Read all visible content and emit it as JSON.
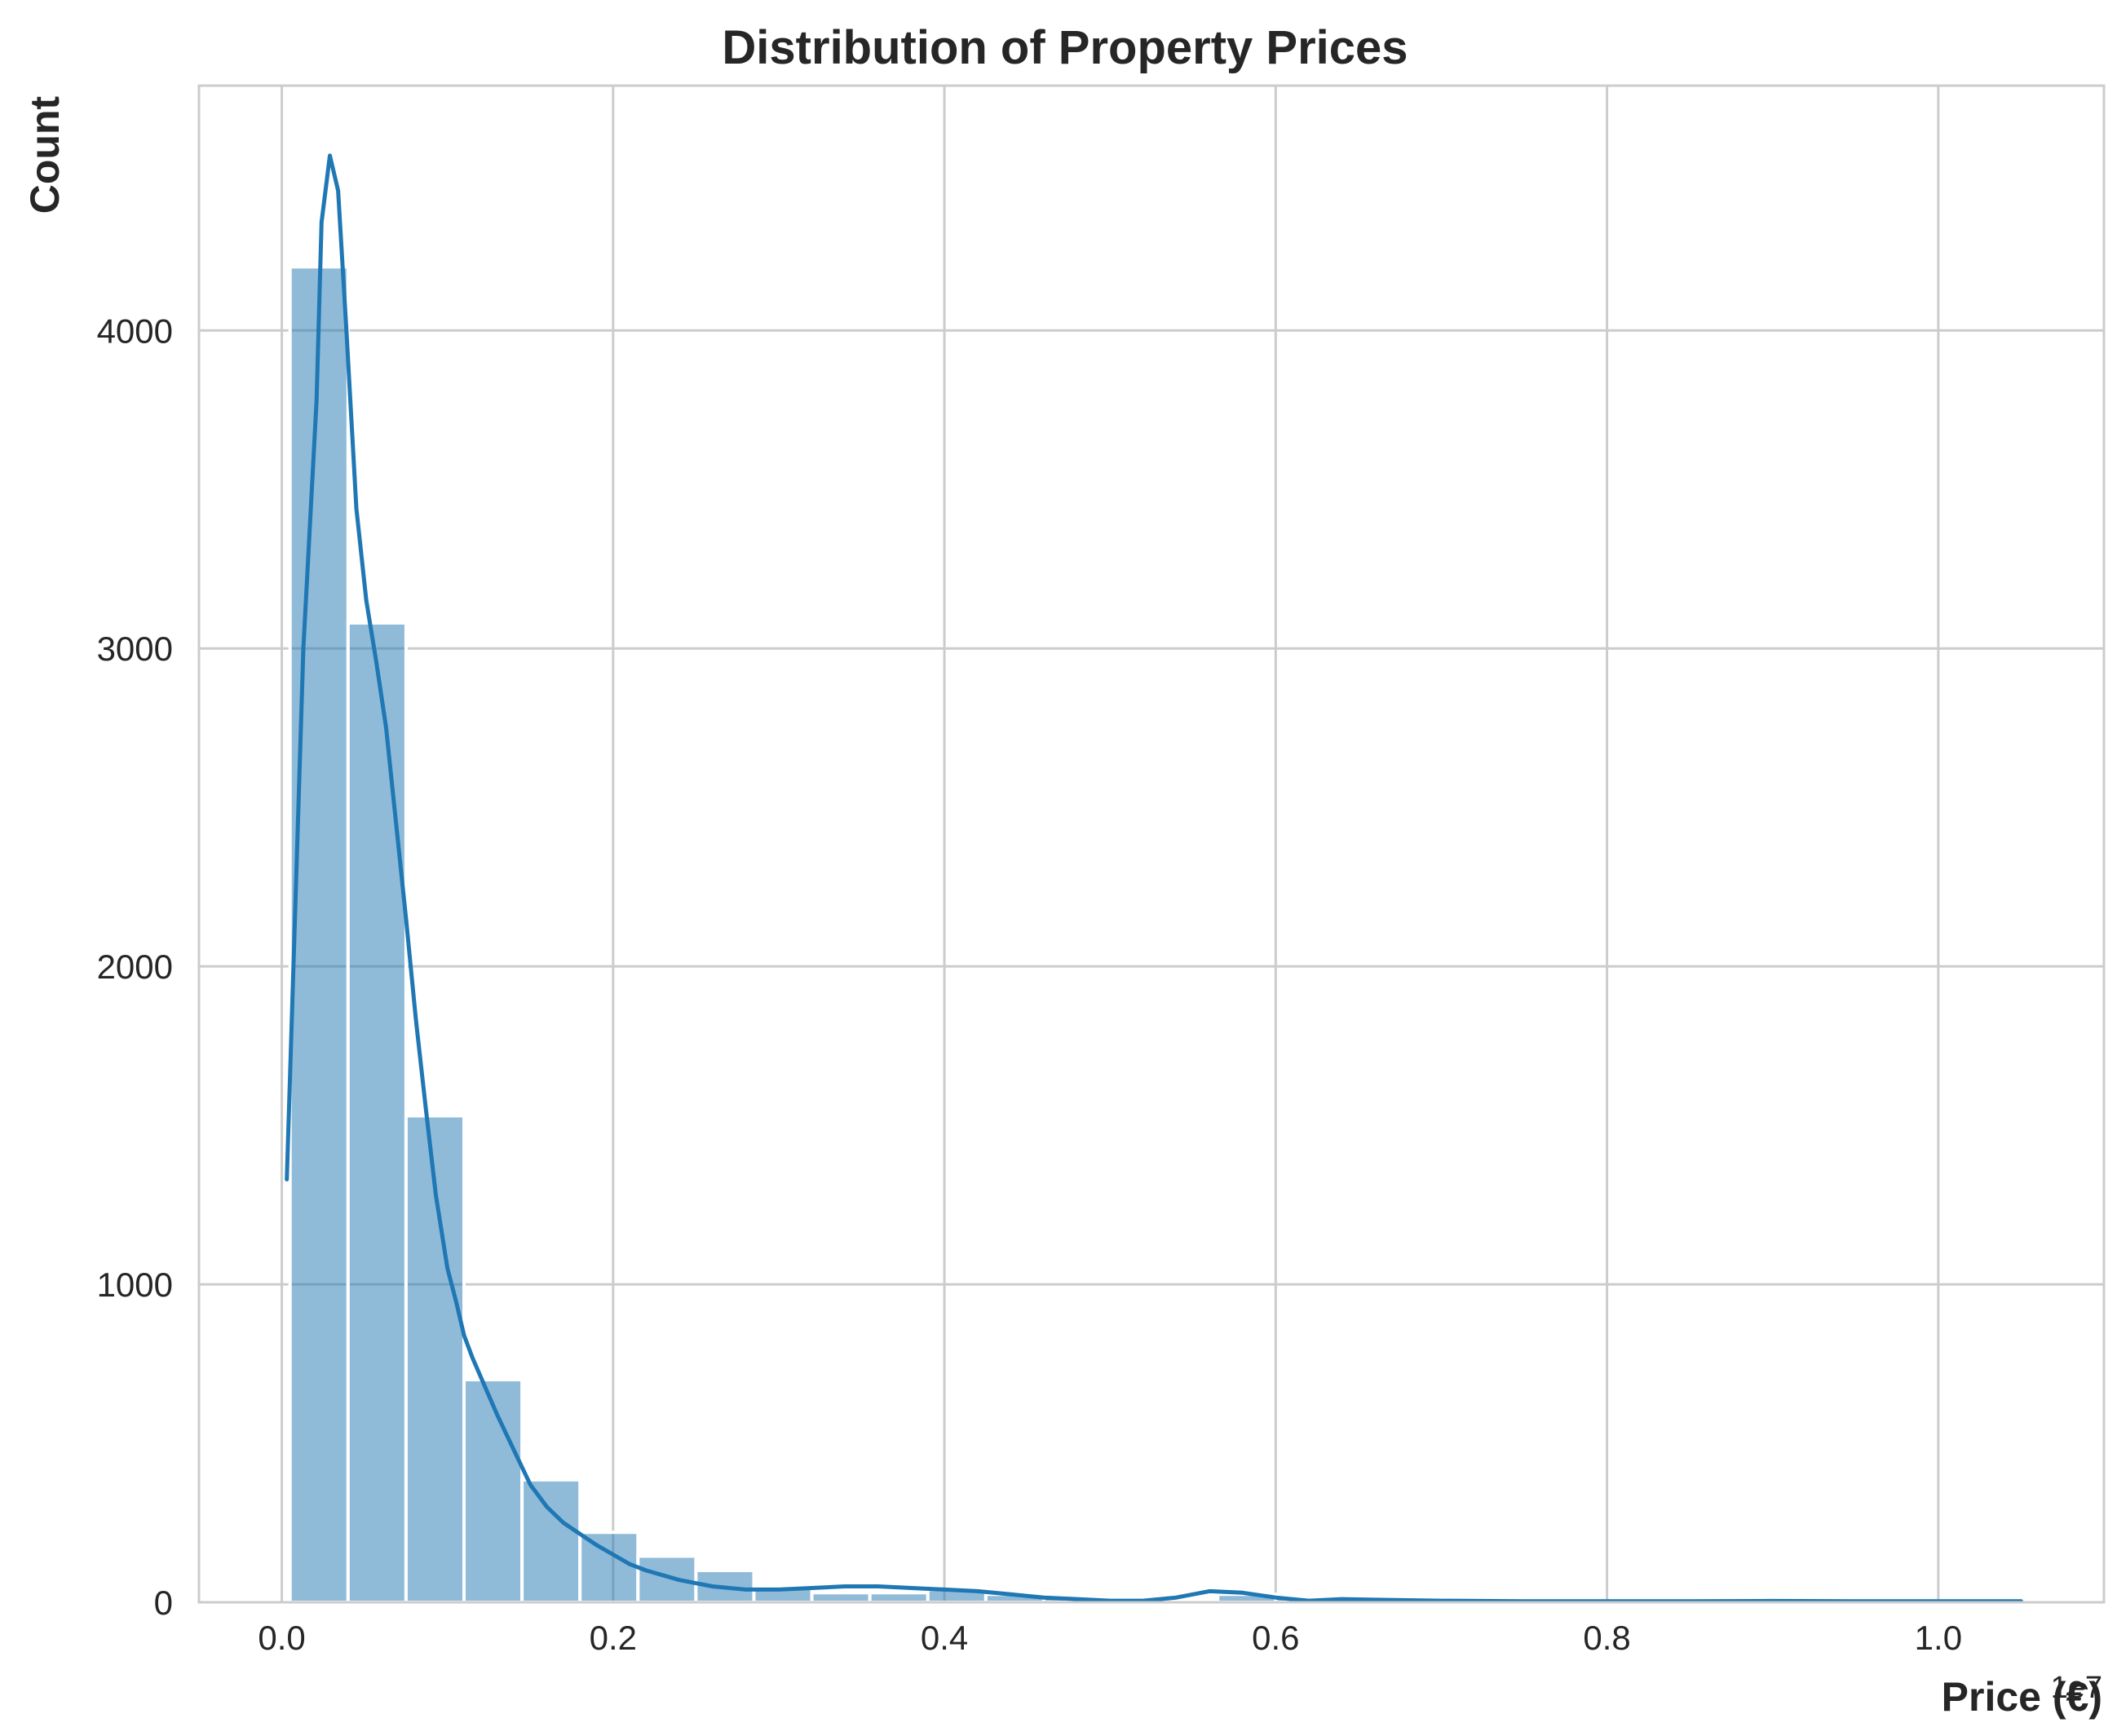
{
  "chart_data": {
    "type": "bar",
    "title": "Distribution of Property Prices",
    "xlabel": "Price (€)",
    "ylabel": "Count",
    "x_offset_label": "1e7",
    "x_scale_factor": 10000000,
    "xlim": [
      -0.05,
      1.1
    ],
    "ylim": [
      0,
      4770
    ],
    "xticks": [
      0.0,
      0.2,
      0.4,
      0.6,
      0.8,
      1.0
    ],
    "xtick_labels": [
      "0.0",
      "0.2",
      "0.4",
      "0.6",
      "0.8",
      "1.0"
    ],
    "yticks": [
      0,
      1000,
      2000,
      3000,
      4000
    ],
    "ytick_labels": [
      "0",
      "1000",
      "2000",
      "3000",
      "4000"
    ],
    "grid": true,
    "legend": "none",
    "series": [
      {
        "kind": "histogram",
        "color": "#1f77b4",
        "bin_edges": [
          0.005,
          0.04,
          0.075,
          0.11,
          0.145,
          0.18,
          0.215,
          0.25,
          0.285,
          0.32,
          0.355,
          0.39,
          0.425,
          0.46,
          0.495,
          0.53,
          0.565,
          0.6,
          0.635,
          0.67,
          0.705,
          0.74,
          0.775,
          0.81,
          0.845,
          0.88,
          0.915,
          0.95,
          0.985,
          1.02,
          1.055
        ],
        "counts": [
          4200,
          3080,
          1530,
          700,
          385,
          220,
          145,
          100,
          45,
          30,
          30,
          40,
          25,
          15,
          5,
          5,
          25,
          15,
          8,
          5,
          3,
          3,
          3,
          2,
          2,
          2,
          3,
          2,
          2,
          2
        ]
      },
      {
        "kind": "kde",
        "color": "#1f77b4",
        "x": [
          0.003,
          0.013,
          0.021,
          0.024,
          0.029,
          0.034,
          0.039,
          0.045,
          0.051,
          0.057,
          0.063,
          0.069,
          0.075,
          0.081,
          0.087,
          0.093,
          0.1,
          0.105,
          0.11,
          0.115,
          0.12,
          0.13,
          0.14,
          0.15,
          0.16,
          0.17,
          0.18,
          0.19,
          0.2,
          0.21,
          0.22,
          0.24,
          0.26,
          0.28,
          0.3,
          0.32,
          0.34,
          0.36,
          0.38,
          0.4,
          0.42,
          0.44,
          0.46,
          0.48,
          0.5,
          0.52,
          0.54,
          0.56,
          0.58,
          0.6,
          0.62,
          0.64,
          0.66,
          0.7,
          0.75,
          0.8,
          0.85,
          0.9,
          0.95,
          1.0,
          1.05
        ],
        "y": [
          1330,
          3000,
          3780,
          4340,
          4550,
          4440,
          4000,
          3440,
          3150,
          2960,
          2750,
          2450,
          2150,
          1830,
          1550,
          1280,
          1050,
          950,
          840,
          770,
          710,
          590,
          480,
          370,
          300,
          250,
          215,
          180,
          150,
          120,
          100,
          70,
          50,
          40,
          40,
          45,
          50,
          50,
          45,
          40,
          35,
          25,
          15,
          10,
          5,
          5,
          15,
          35,
          30,
          15,
          5,
          10,
          8,
          5,
          3,
          3,
          3,
          4,
          3,
          3,
          3
        ]
      }
    ]
  }
}
